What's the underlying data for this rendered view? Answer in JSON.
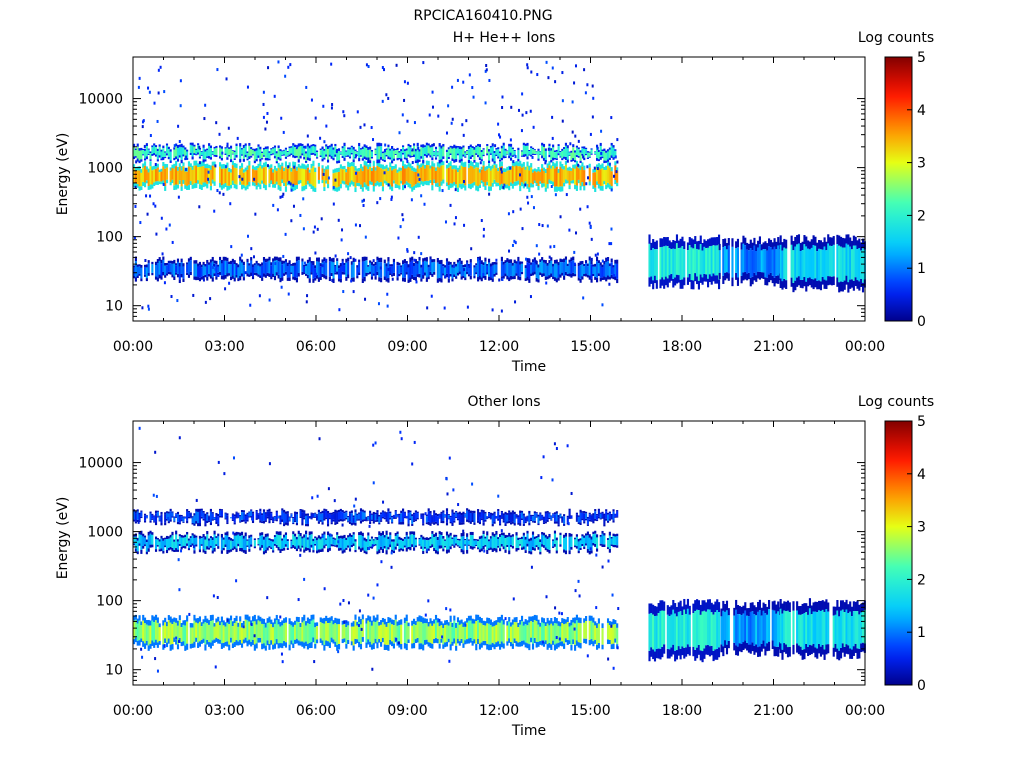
{
  "figure_title": "RPCICA160410.PNG",
  "chart_data": [
    {
      "type": "heatmap",
      "title": "H+ He++ Ions",
      "xlabel": "Time",
      "ylabel": "Energy (eV)",
      "x_ticks": [
        "00:00",
        "03:00",
        "06:00",
        "09:00",
        "12:00",
        "15:00",
        "18:00",
        "21:00",
        "00:00"
      ],
      "y_ticks": [
        "10",
        "100",
        "1000",
        "10000"
      ],
      "y_scale": "log",
      "ylim": [
        6,
        40000
      ],
      "colorbar": {
        "label": "Log counts",
        "range": [
          0,
          5
        ],
        "ticks": [
          "0",
          "1",
          "2",
          "3",
          "4",
          "5"
        ],
        "colormap": "rainbow"
      },
      "bands": [
        {
          "t_start": 0.0,
          "t_end": 15.9,
          "e_low": 520,
          "e_high": 1100,
          "level": 3.4
        },
        {
          "t_start": 0.0,
          "t_end": 15.9,
          "e_low": 1350,
          "e_high": 2000,
          "level": 2.1
        },
        {
          "t_start": 0.0,
          "t_end": 15.9,
          "e_low": 25,
          "e_high": 45,
          "level": 0.9
        },
        {
          "t_start": 16.9,
          "t_end": 19.2,
          "e_low": 20,
          "e_high": 95,
          "level": 1.9
        },
        {
          "t_start": 19.2,
          "t_end": 21.2,
          "e_low": 22,
          "e_high": 90,
          "level": 1.1
        },
        {
          "t_start": 21.2,
          "t_end": 24.0,
          "e_low": 18,
          "e_high": 95,
          "level": 1.6
        }
      ],
      "data_gap": [
        15.9,
        16.9
      ]
    },
    {
      "type": "heatmap",
      "title": "Other Ions",
      "xlabel": "Time",
      "ylabel": "Energy (eV)",
      "x_ticks": [
        "00:00",
        "03:00",
        "06:00",
        "09:00",
        "12:00",
        "15:00",
        "18:00",
        "21:00",
        "00:00"
      ],
      "y_ticks": [
        "10",
        "100",
        "1000",
        "10000"
      ],
      "y_scale": "log",
      "ylim": [
        6,
        40000
      ],
      "colorbar": {
        "label": "Log counts",
        "range": [
          0,
          5
        ],
        "ticks": [
          "0",
          "1",
          "2",
          "3",
          "4",
          "5"
        ],
        "colormap": "rainbow"
      },
      "bands": [
        {
          "t_start": 0.0,
          "t_end": 15.9,
          "e_low": 550,
          "e_high": 900,
          "level": 1.5
        },
        {
          "t_start": 0.0,
          "t_end": 15.9,
          "e_low": 1400,
          "e_high": 1900,
          "level": 0.7
        },
        {
          "t_start": 0.0,
          "t_end": 15.9,
          "e_low": 22,
          "e_high": 55,
          "level": 2.6
        },
        {
          "t_start": 16.9,
          "t_end": 19.2,
          "e_low": 15,
          "e_high": 95,
          "level": 1.9
        },
        {
          "t_start": 19.2,
          "t_end": 21.2,
          "e_low": 18,
          "e_high": 90,
          "level": 1.2
        },
        {
          "t_start": 21.2,
          "t_end": 24.0,
          "e_low": 16,
          "e_high": 95,
          "level": 1.7
        }
      ],
      "data_gap": [
        15.9,
        16.9
      ]
    }
  ]
}
